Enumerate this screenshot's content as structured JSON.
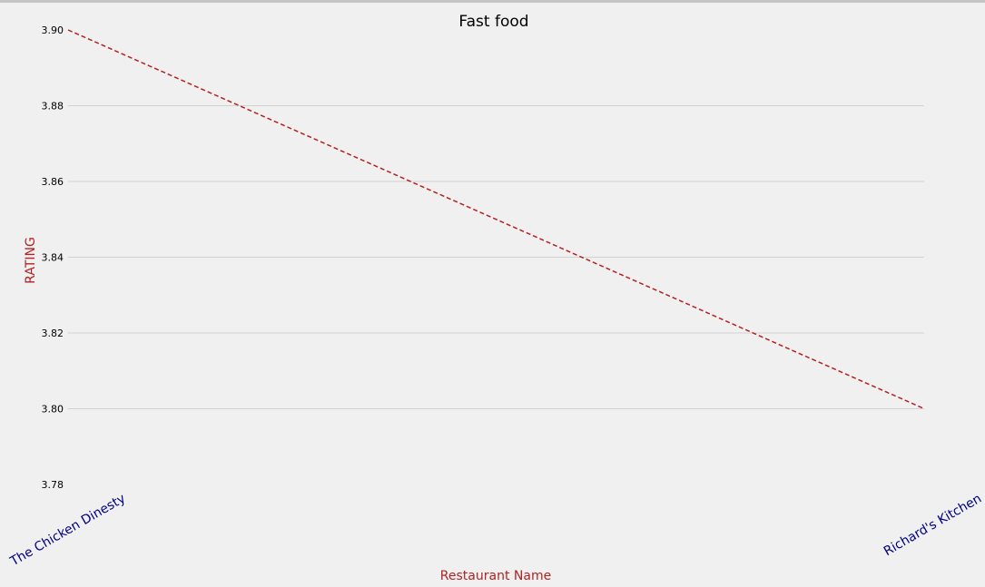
{
  "chart_data": {
    "type": "line",
    "title": "Fast food",
    "xlabel": "Restaurant Name",
    "ylabel": "RATING",
    "categories": [
      "The Chicken Dinesty",
      "Richard's Kitchen"
    ],
    "series": [
      {
        "values": [
          3.9,
          3.8
        ],
        "color": "#b22222",
        "line_style": "dashed"
      }
    ],
    "ylim": [
      3.78,
      3.9
    ],
    "yticks": [
      "3.90",
      "3.88",
      "3.86",
      "3.84",
      "3.82",
      "3.80",
      "3.78"
    ],
    "grid": "horizontal",
    "colors": {
      "axis_title": "#b22222",
      "category_label": "#000080",
      "grid": "#d2d2d2",
      "background": "#f0f0f0"
    }
  }
}
